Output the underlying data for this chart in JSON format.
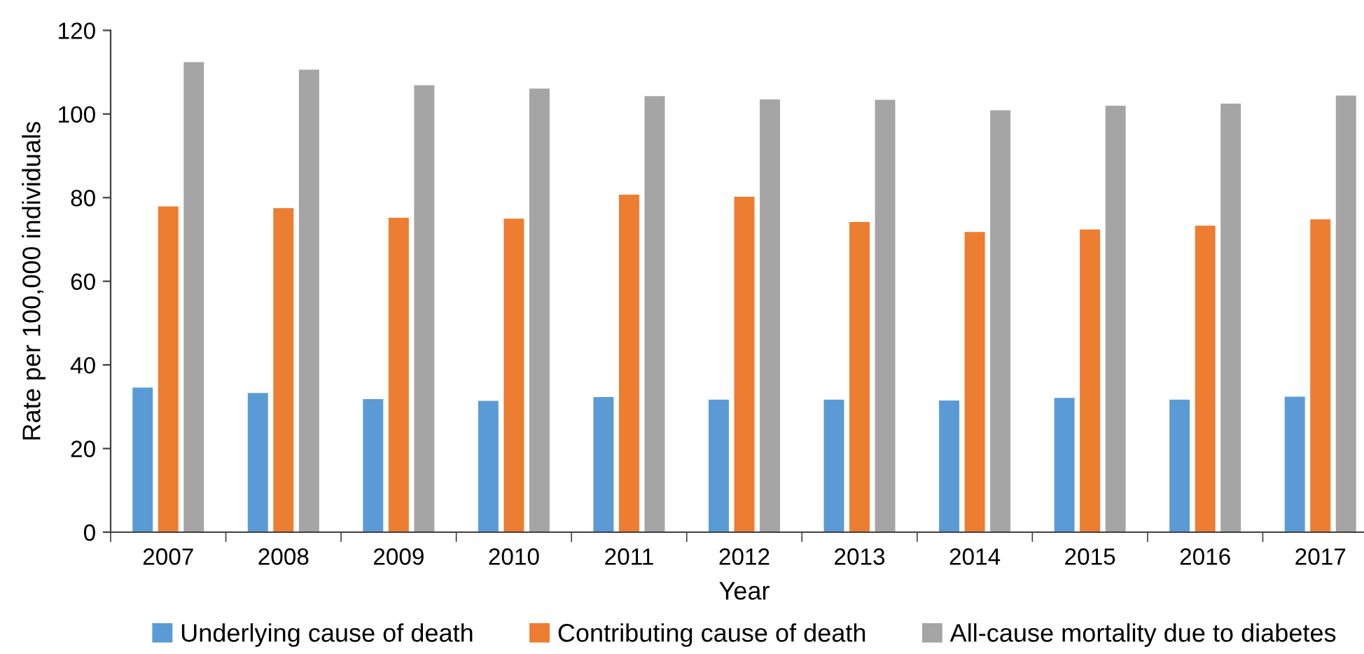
{
  "chart_data": {
    "type": "bar",
    "xlabel": "Year",
    "ylabel": "Rate per 100,000 individuals",
    "categories": [
      "2007",
      "2008",
      "2009",
      "2010",
      "2011",
      "2012",
      "2013",
      "2014",
      "2015",
      "2016",
      "2017"
    ],
    "series": [
      {
        "name": "Underlying cause of death",
        "color": "#5b9bd5",
        "values": [
          34.6,
          33.3,
          31.8,
          31.4,
          32.3,
          31.7,
          31.7,
          31.5,
          32.1,
          31.7,
          32.4
        ]
      },
      {
        "name": "Contributing cause of death",
        "color": "#ed7d31",
        "values": [
          77.9,
          77.5,
          75.2,
          75.0,
          80.7,
          80.2,
          74.2,
          71.8,
          72.4,
          73.3,
          74.8
        ]
      },
      {
        "name": "All-cause mortality due to diabetes",
        "color": "#a5a5a5",
        "values": [
          112.4,
          110.6,
          106.9,
          106.1,
          104.3,
          103.5,
          103.4,
          100.9,
          102.0,
          102.5,
          104.4
        ]
      }
    ],
    "ylim": [
      0,
      120
    ],
    "yticks": [
      0,
      20,
      40,
      60,
      80,
      100,
      120
    ],
    "grid": false,
    "legend": "bottom"
  }
}
